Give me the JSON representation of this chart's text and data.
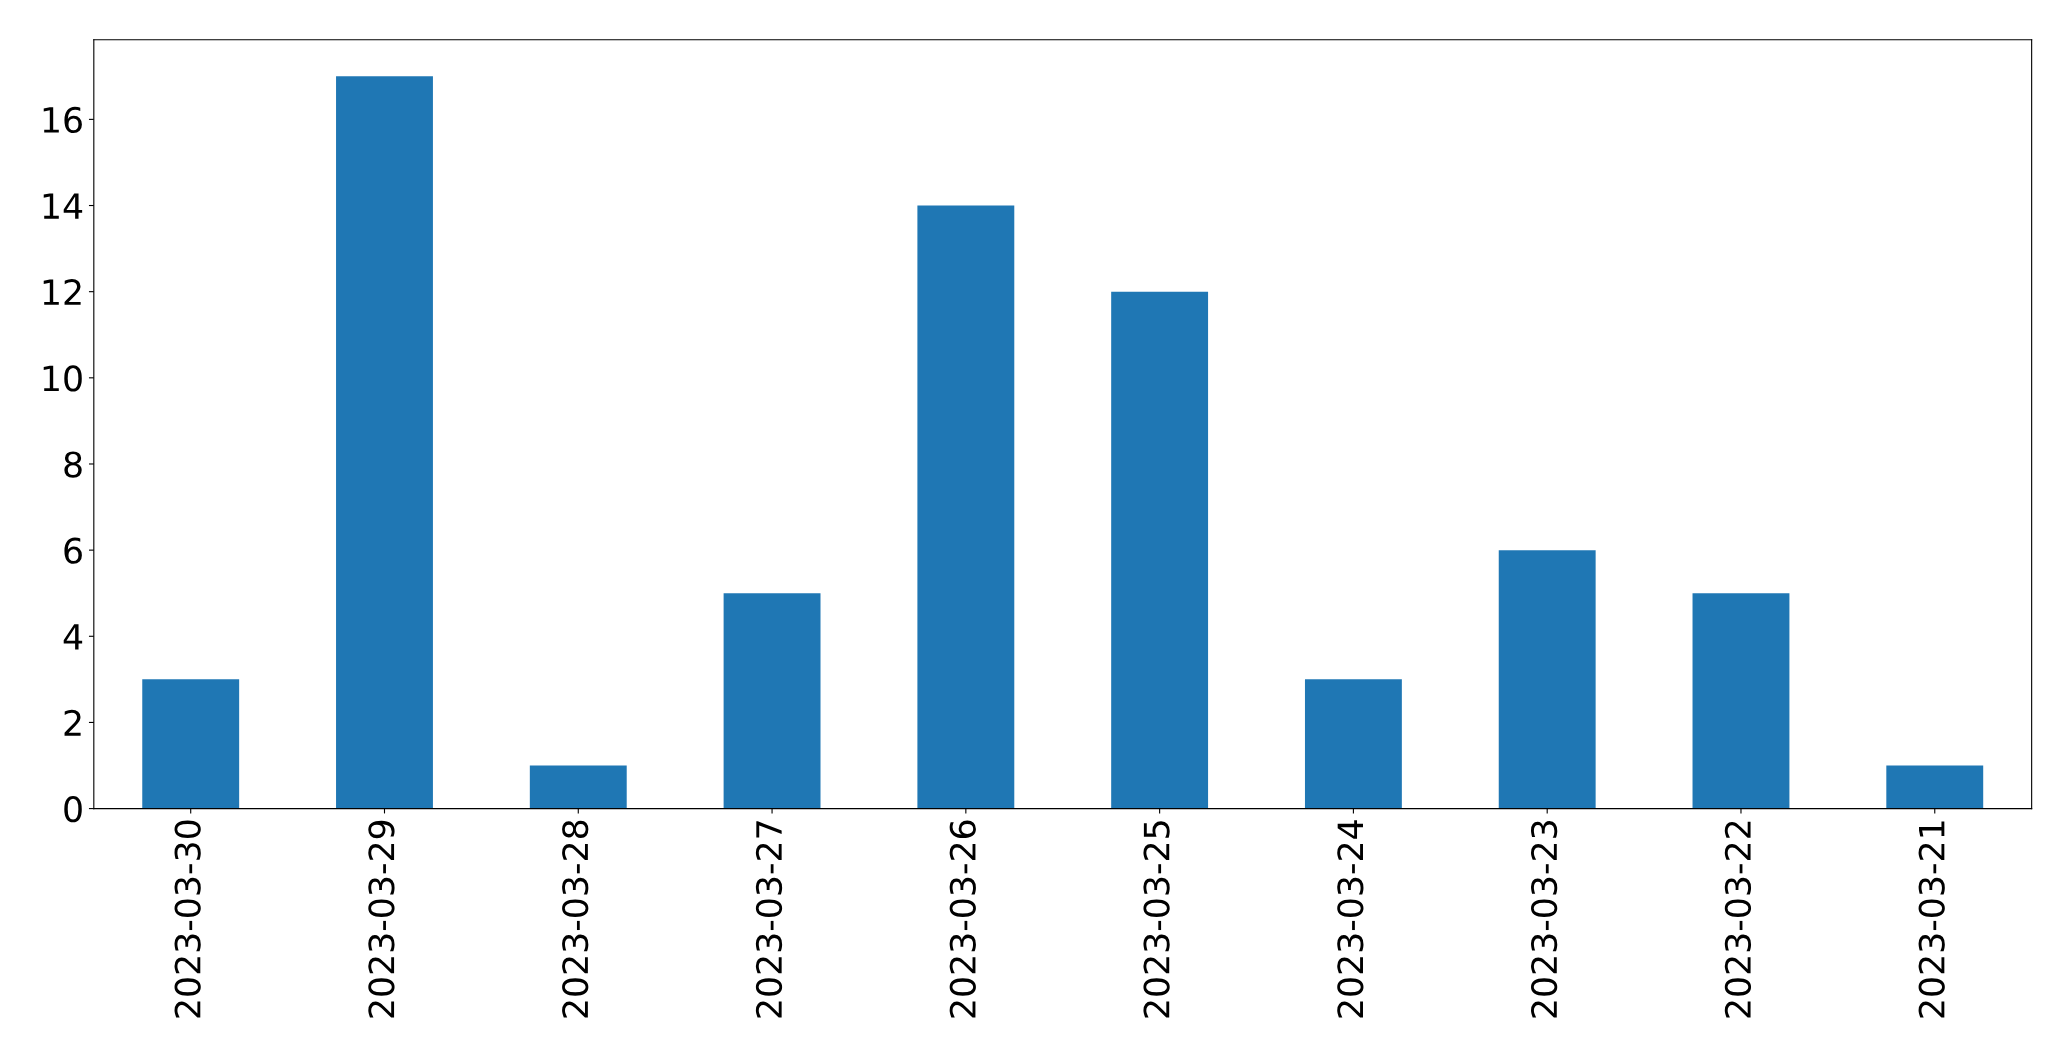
{
  "chart_data": {
    "type": "bar",
    "categories": [
      "2023-03-30",
      "2023-03-29",
      "2023-03-28",
      "2023-03-27",
      "2023-03-26",
      "2023-03-25",
      "2023-03-24",
      "2023-03-23",
      "2023-03-22",
      "2023-03-21"
    ],
    "values": [
      3,
      17,
      1,
      5,
      14,
      12,
      3,
      6,
      5,
      1
    ],
    "color": "#1f77b4",
    "ylim": [
      0,
      17.85
    ],
    "yticks": [
      0,
      2,
      4,
      6,
      8,
      10,
      12,
      14,
      16
    ],
    "grid": false,
    "legend": false
  }
}
